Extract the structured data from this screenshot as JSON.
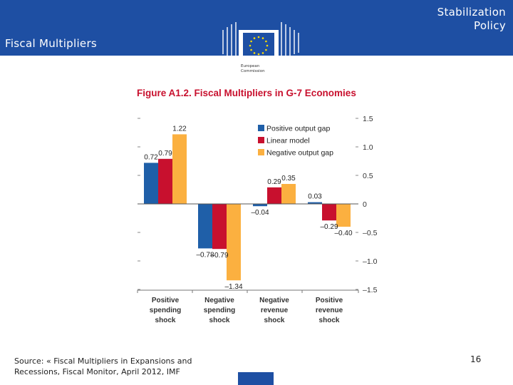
{
  "slide": {
    "title": "Fiscal Multipliers",
    "topic": "Stabilization\nPolicy",
    "logo_text": "European\nCommission",
    "source": "Source: « Fiscal Multipliers in Expansions and Recessions, Fiscal Monitor, April 2012, IMF",
    "page_number": "16",
    "colors": {
      "header": "#1e4fa3",
      "figure_title": "#c8102e"
    }
  },
  "chart_data": {
    "type": "bar",
    "title": "Figure A1.2. Fiscal Multipliers in G-7 Economies",
    "categories": [
      [
        "Positive",
        "spending",
        "shock"
      ],
      [
        "Negative",
        "spending",
        "shock"
      ],
      [
        "Negative",
        "revenue",
        "shock"
      ],
      [
        "Positive",
        "revenue",
        "shock"
      ]
    ],
    "series": [
      {
        "name": "Positive output gap",
        "color": "#1f5fa8",
        "values": [
          0.72,
          -0.78,
          -0.04,
          0.03
        ]
      },
      {
        "name": "Linear model",
        "color": "#c8102e",
        "values": [
          0.79,
          -0.79,
          0.29,
          -0.29
        ]
      },
      {
        "name": "Negative output gap",
        "color": "#fbb040",
        "values": [
          1.22,
          -1.34,
          0.35,
          -0.4
        ]
      }
    ],
    "data_labels": [
      [
        "0.72",
        "–0.78",
        "–0.04",
        "0.03"
      ],
      [
        "0.79",
        "–0.79",
        "0.29",
        "–0.29"
      ],
      [
        "1.22",
        "–1.34",
        "0.35",
        "–0.40"
      ]
    ],
    "yticks": [
      1.5,
      1.0,
      0.5,
      0,
      -0.5,
      -1.0,
      -1.5
    ],
    "ytick_labels": [
      "1.5",
      "1.0",
      "0.5",
      "0",
      "–0.5",
      "–1.0",
      "–1.5"
    ],
    "ylim": [
      -1.5,
      1.5
    ],
    "legend_position": "top-right",
    "grid": false
  }
}
